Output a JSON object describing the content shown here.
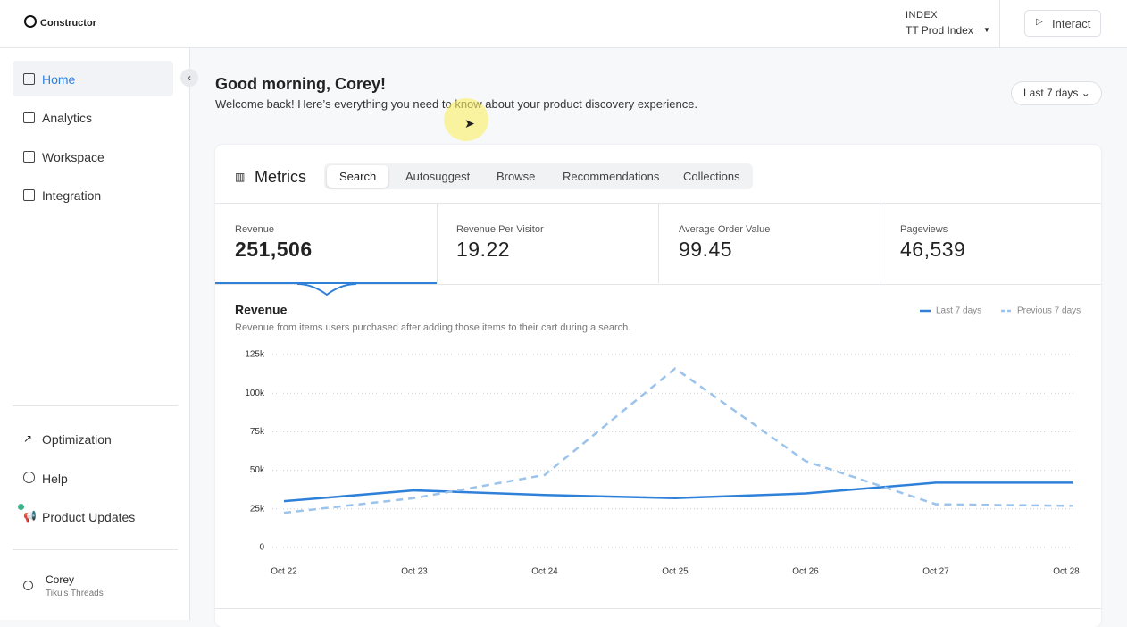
{
  "header": {
    "logo": "Constructor",
    "index_label": "INDEX",
    "index_name": "TT Prod Index",
    "interact": "Interact"
  },
  "nav": {
    "items": [
      "Home",
      "Analytics",
      "Workspace",
      "Integration"
    ],
    "bottom_items": [
      "Optimization",
      "Help",
      "Product Updates"
    ],
    "user": {
      "name": "Corey",
      "org": "Tiku's Threads"
    }
  },
  "greeting": {
    "title": "Good morning, Corey!",
    "subtitle": "Welcome back! Here’s everything you need to know about your product discovery experience.",
    "date_range": "Last 7 days"
  },
  "metrics": {
    "title": "Metrics",
    "tabs": [
      "Search",
      "Autosuggest",
      "Browse",
      "Recommendations",
      "Collections"
    ],
    "kpis": [
      {
        "label": "Revenue",
        "value": "251,506"
      },
      {
        "label": "Revenue Per Visitor",
        "value": "19.22"
      },
      {
        "label": "Average Order Value",
        "value": "99.45"
      },
      {
        "label": "Pageviews",
        "value": "46,539"
      }
    ]
  },
  "chart_data": {
    "type": "line",
    "title": "Revenue",
    "subtitle": "Revenue from items users purchased after adding those items to their cart during a search.",
    "categories": [
      "Oct 22",
      "Oct 23",
      "Oct 24",
      "Oct 25",
      "Oct 26",
      "Oct 27",
      "Oct 28"
    ],
    "series": [
      {
        "name": "Last 7 days",
        "color": "#2f80d9",
        "dash": "solid",
        "values": [
          30000,
          37000,
          34000,
          32000,
          35000,
          42000,
          42000
        ]
      },
      {
        "name": "Previous 7 days",
        "color": "#9cc3ec",
        "dash": "dashed",
        "values": [
          22500,
          32000,
          47000,
          116000,
          56000,
          28000,
          27000
        ]
      }
    ],
    "ylim": [
      0,
      125000
    ],
    "yticks": [
      0,
      {
        "value": 25000,
        "label": "25k"
      },
      {
        "value": 50000,
        "label": "50k"
      },
      {
        "value": 75000,
        "label": "75k"
      },
      {
        "value": 100000,
        "label": "100k"
      },
      {
        "value": 125000,
        "label": "125k"
      }
    ],
    "grid": true
  }
}
